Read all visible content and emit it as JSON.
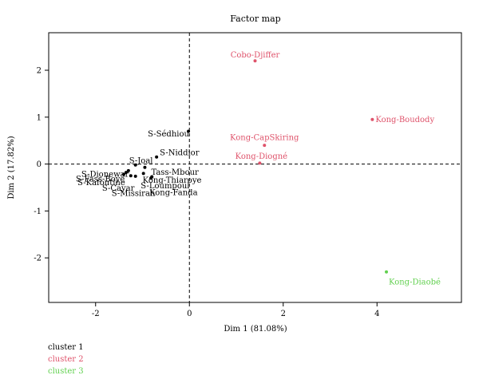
{
  "chart_data": {
    "type": "scatter",
    "title": "Factor map",
    "xlabel": "Dim 1 (81.08%)",
    "ylabel": "Dim 2 (17.82%)",
    "xlim": [
      -3.0,
      5.8
    ],
    "ylim": [
      -2.95,
      2.8
    ],
    "xticks": [
      -2,
      0,
      2,
      4
    ],
    "yticks": [
      -2,
      -1,
      0,
      1,
      2
    ],
    "reference_lines": {
      "x": 0,
      "y": 0,
      "style": "dashed"
    },
    "grid": false,
    "series": [
      {
        "name": "cluster 1",
        "color": "#000000",
        "points": [
          {
            "label": "S-Sédhiou",
            "x": -0.02,
            "y": 0.7
          },
          {
            "label": "S-Niddior",
            "x": -0.7,
            "y": 0.15
          },
          {
            "label": "S-Joal",
            "x": -1.15,
            "y": -0.02
          },
          {
            "label": "Tass-Mbour",
            "x": -0.95,
            "y": -0.07
          },
          {
            "label": "Kong-Thiaroye",
            "x": -0.98,
            "y": -0.2
          },
          {
            "label": "S-Loumpoul",
            "x": -0.8,
            "y": -0.27
          },
          {
            "label": "Kong-Fanda",
            "x": -0.82,
            "y": -0.3
          },
          {
            "label": "S-Dionewar",
            "x": -1.3,
            "y": -0.14
          },
          {
            "label": "S-Fass-Boye",
            "x": -1.35,
            "y": -0.18
          },
          {
            "label": "S-Kafoutine",
            "x": -1.4,
            "y": -0.22
          },
          {
            "label": "S-Cayar",
            "x": -1.25,
            "y": -0.25
          },
          {
            "label": "S-Missirah",
            "x": -1.15,
            "y": -0.26
          }
        ]
      },
      {
        "name": "cluster 2",
        "color": "#df536b",
        "points": [
          {
            "label": "Cobo-Djiffer",
            "x": 1.4,
            "y": 2.2
          },
          {
            "label": "Kong-Boudody",
            "x": 3.9,
            "y": 0.95
          },
          {
            "label": "Kong-CapSkiring",
            "x": 1.6,
            "y": 0.4
          },
          {
            "label": "Kong-Diogné",
            "x": 1.5,
            "y": 0.02
          }
        ]
      },
      {
        "name": "cluster 3",
        "color": "#61d04f",
        "points": [
          {
            "label": "Kong-Diaobé",
            "x": 4.2,
            "y": -2.3
          }
        ]
      }
    ]
  },
  "legend": {
    "items": [
      {
        "label": "cluster 1",
        "color": "#000000"
      },
      {
        "label": "cluster 2",
        "color": "#df536b"
      },
      {
        "label": "cluster 3",
        "color": "#61d04f"
      }
    ]
  }
}
